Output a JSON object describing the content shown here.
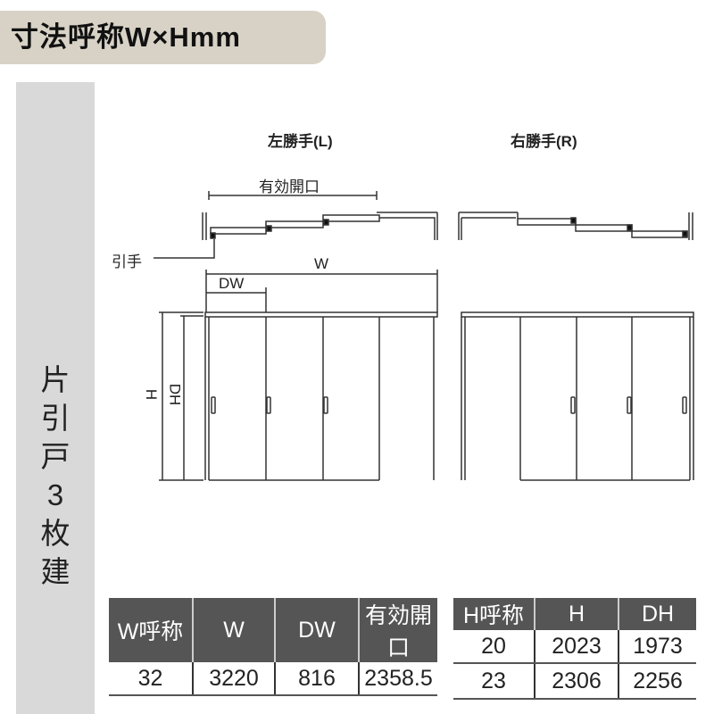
{
  "title": "寸法呼称W×Hmm",
  "side_label": [
    "片",
    "引",
    "戸",
    "3",
    "枚",
    "建"
  ],
  "diagram": {
    "left_label": "左勝手(L)",
    "right_label": "右勝手(R)",
    "opening": "有効開口",
    "handle": "引手",
    "w": "W",
    "dw": "DW",
    "h": "H",
    "dh": "DH"
  },
  "table_w": {
    "headers": [
      "W呼称",
      "W",
      "DW",
      "有効開口"
    ],
    "rows": [
      [
        "32",
        "3220",
        "816",
        "2358.5"
      ]
    ]
  },
  "table_h": {
    "headers": [
      "H呼称",
      "H",
      "DH"
    ],
    "rows": [
      [
        "20",
        "2023",
        "1973"
      ],
      [
        "23",
        "2306",
        "2256"
      ]
    ]
  }
}
